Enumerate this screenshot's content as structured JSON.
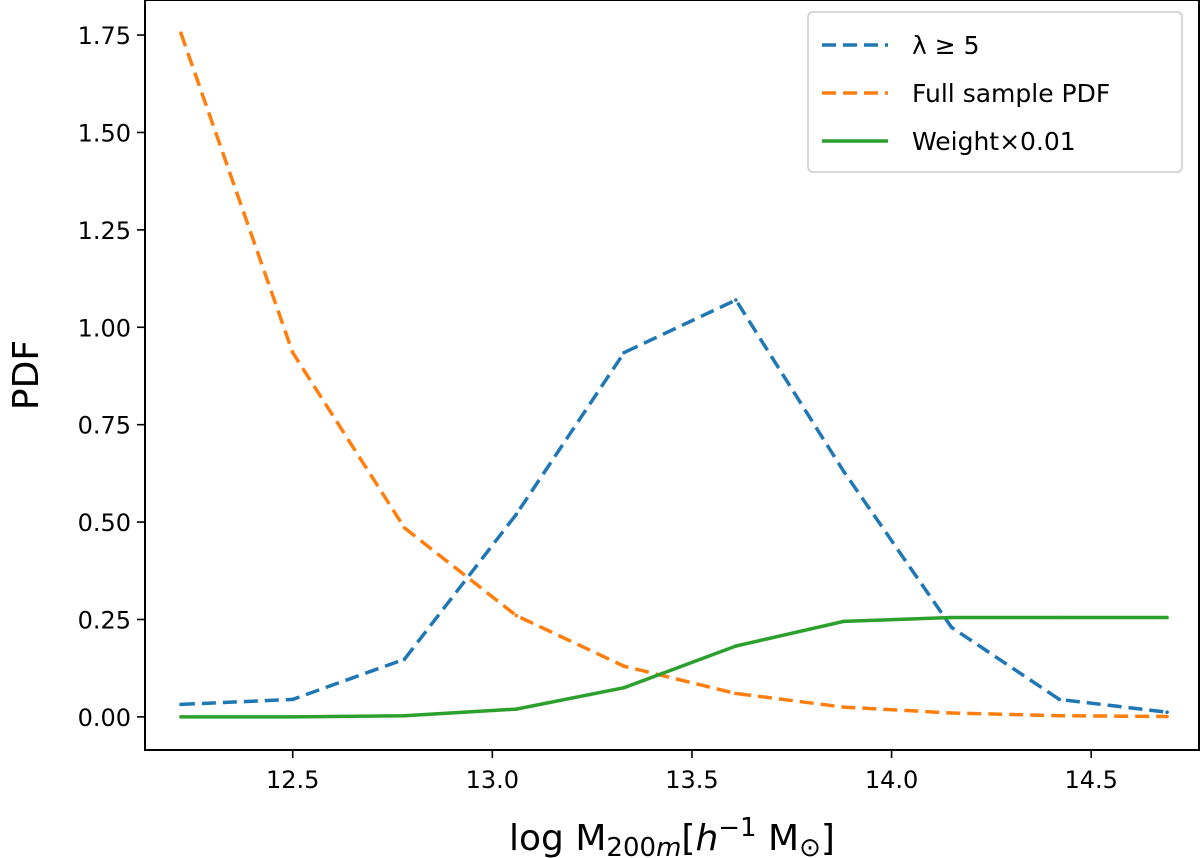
{
  "chart_data": {
    "type": "line",
    "title": "",
    "xlabel": "log M_200m[h^-1 M_⊙]",
    "ylabel": "PDF",
    "xlim": [
      12.13,
      14.77
    ],
    "ylim": [
      -0.085,
      1.84
    ],
    "x_ticks": [
      "12.5",
      "13.0",
      "13.5",
      "14.0",
      "14.5"
    ],
    "y_ticks": [
      "0.00",
      "0.25",
      "0.50",
      "0.75",
      "1.00",
      "1.25",
      "1.50",
      "1.75"
    ],
    "grid": false,
    "legend_position": "top-right",
    "x": [
      12.22,
      12.5,
      12.78,
      13.06,
      13.33,
      13.61,
      13.88,
      14.15,
      14.42,
      14.69
    ],
    "series": [
      {
        "name": "λ ≥ 5",
        "color": "#1f77b4",
        "dash": "dashed",
        "values": [
          0.032,
          0.045,
          0.148,
          0.52,
          0.935,
          1.07,
          0.63,
          0.23,
          0.045,
          0.012
        ]
      },
      {
        "name": "Full sample PDF",
        "color": "#ff7f0e",
        "dash": "dashed",
        "values": [
          1.755,
          0.935,
          0.485,
          0.26,
          0.13,
          0.06,
          0.025,
          0.01,
          0.003,
          0.001
        ]
      },
      {
        "name": "Weight×0.01",
        "color": "#2ca02c",
        "dash": "solid",
        "values": [
          0.0,
          0.0,
          0.003,
          0.02,
          0.075,
          0.182,
          0.245,
          0.255,
          0.255,
          0.255
        ]
      }
    ]
  }
}
